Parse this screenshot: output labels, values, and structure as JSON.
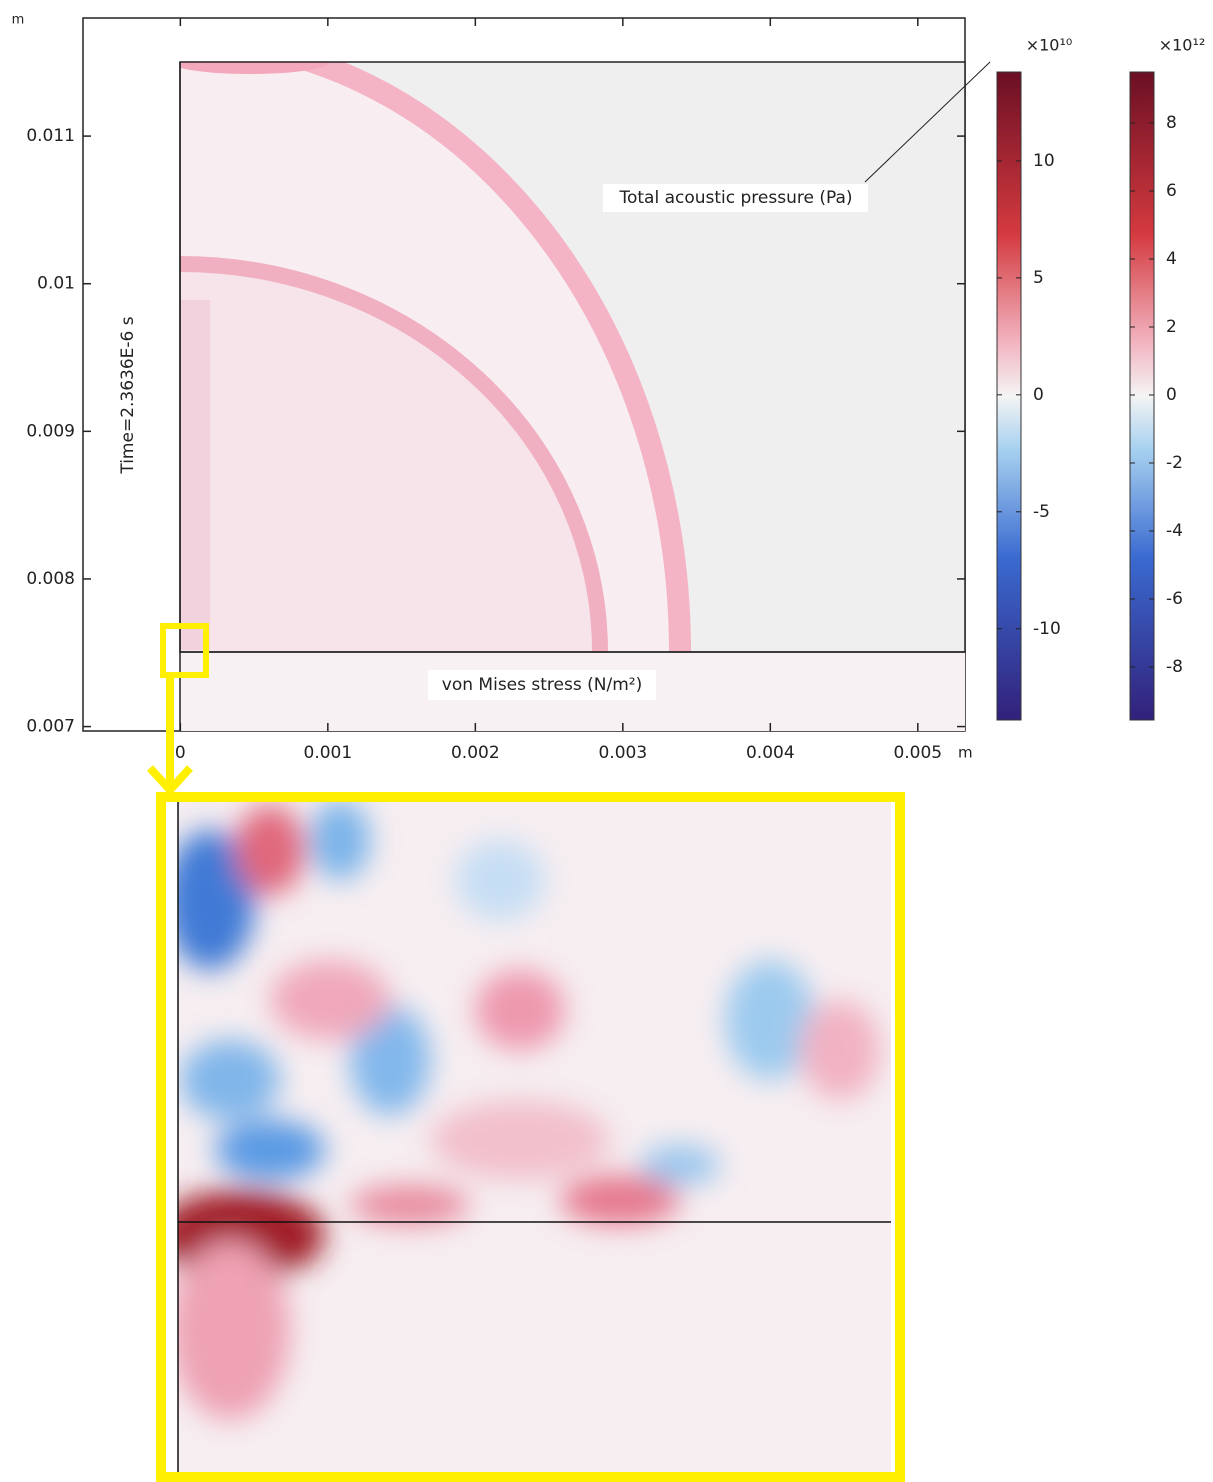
{
  "chart_data": {
    "type": "field",
    "y_unit": "m",
    "x_unit": "m",
    "time_label": "Time=2.3636E-6 s",
    "annotations": [
      "Total acoustic pressure (Pa)",
      "von Mises stress (N/m²)"
    ],
    "xlim": [
      -0.00066,
      0.00532
    ],
    "ylim": [
      0.00697,
      0.0118
    ],
    "xticks": [
      0,
      0.001,
      0.002,
      0.003,
      0.004,
      0.005
    ],
    "yticks": [
      0.007,
      0.008,
      0.009,
      0.01,
      0.011
    ],
    "colorbars": [
      {
        "multiplier": "×10¹⁰",
        "lim": [
          -13.9,
          13.8
        ],
        "ticks": [
          -10,
          -5,
          0,
          5,
          10
        ]
      },
      {
        "multiplier": "×10¹²",
        "lim": [
          -9.56,
          9.5
        ],
        "ticks": [
          -8,
          -6,
          -4,
          -2,
          0,
          2,
          4,
          6,
          8
        ]
      }
    ]
  }
}
